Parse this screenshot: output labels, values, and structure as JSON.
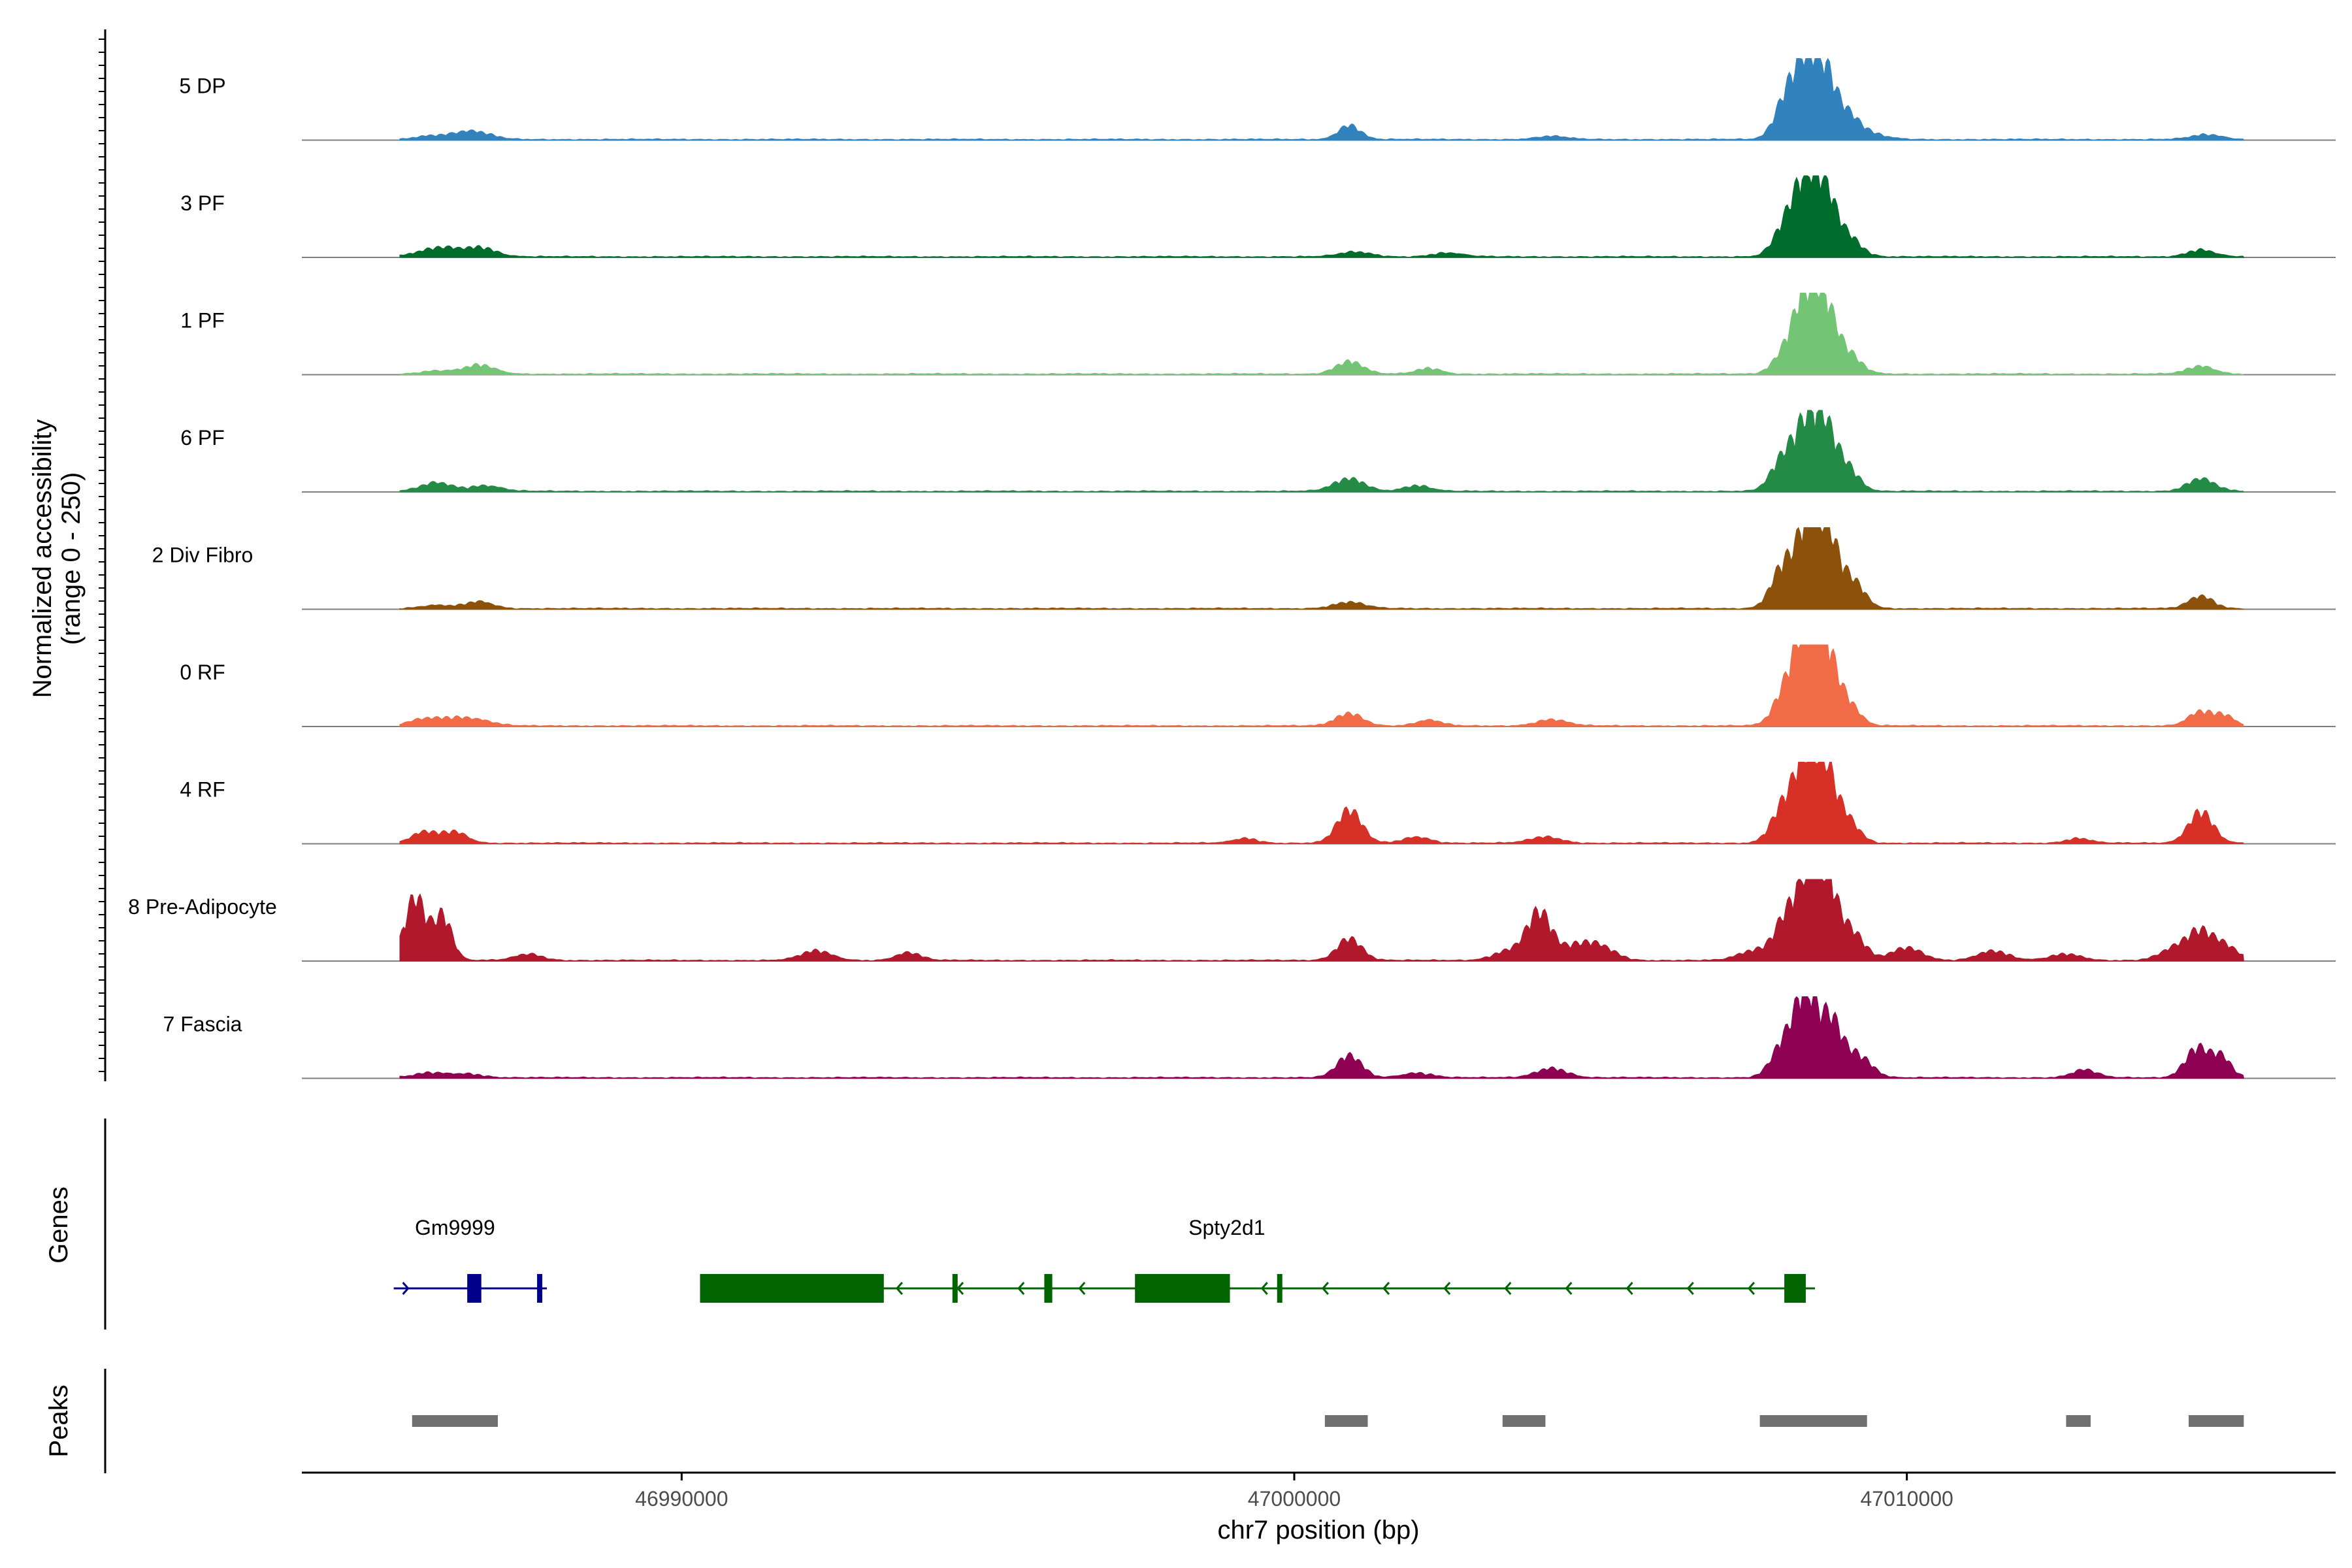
{
  "chart_data": {
    "type": "area",
    "title": "",
    "ylabel_line1": "Normalized accessibility",
    "ylabel_line2": "(range 0 - 250)",
    "ylim": [
      0,
      250
    ],
    "xlabel": "chr7 position (bp)",
    "xlim": [
      46983800,
      47017000
    ],
    "x_ticks": [
      46990000,
      47000000,
      47010000
    ],
    "x_tick_labels": [
      "46990000",
      "47000000",
      "47010000"
    ],
    "series": [
      {
        "name": "5 DP",
        "color": "#3182bd",
        "peaks": [
          [
            46985900,
            12,
            250
          ],
          [
            46986400,
            14,
            220
          ],
          [
            46986700,
            18,
            250
          ],
          [
            47000900,
            45,
            180
          ],
          [
            47004200,
            10,
            250
          ],
          [
            47008050,
            140,
            190
          ],
          [
            47008350,
            210,
            160
          ],
          [
            47008650,
            200,
            170
          ],
          [
            47009000,
            70,
            200
          ],
          [
            47009300,
            20,
            300
          ],
          [
            47014900,
            15,
            250
          ]
        ]
      },
      {
        "name": "3 PF",
        "color": "#006d2c",
        "peaks": [
          [
            46985900,
            20,
            260
          ],
          [
            46986200,
            15,
            200
          ],
          [
            46986700,
            30,
            260
          ],
          [
            47001000,
            15,
            260
          ],
          [
            47002500,
            12,
            250
          ],
          [
            47008050,
            110,
            200
          ],
          [
            47008350,
            200,
            170
          ],
          [
            47008650,
            190,
            170
          ],
          [
            47009000,
            70,
            220
          ],
          [
            47014800,
            22,
            220
          ]
        ]
      },
      {
        "name": "1 PF",
        "color": "#74c476",
        "peaks": [
          [
            46986000,
            10,
            250
          ],
          [
            46986700,
            28,
            250
          ],
          [
            47000900,
            40,
            220
          ],
          [
            47002200,
            18,
            200
          ],
          [
            47008050,
            80,
            200
          ],
          [
            47008350,
            220,
            170
          ],
          [
            47008650,
            200,
            170
          ],
          [
            47009000,
            70,
            220
          ],
          [
            47014800,
            25,
            220
          ]
        ]
      },
      {
        "name": "6 PF",
        "color": "#238b45",
        "peaks": [
          [
            46986000,
            28,
            250
          ],
          [
            46986800,
            18,
            250
          ],
          [
            47000900,
            40,
            250
          ],
          [
            47002000,
            18,
            220
          ],
          [
            47008000,
            110,
            200
          ],
          [
            47008350,
            180,
            170
          ],
          [
            47008650,
            190,
            170
          ],
          [
            47009000,
            80,
            200
          ],
          [
            47014800,
            40,
            220
          ]
        ]
      },
      {
        "name": "2 Div Fibro",
        "color": "#8c510a",
        "peaks": [
          [
            46986000,
            10,
            250
          ],
          [
            46986700,
            22,
            220
          ],
          [
            47000900,
            20,
            250
          ],
          [
            47008000,
            140,
            200
          ],
          [
            47008400,
            260,
            170
          ],
          [
            47008700,
            220,
            170
          ],
          [
            47009100,
            90,
            200
          ],
          [
            47014800,
            40,
            200
          ]
        ]
      },
      {
        "name": "0 RF",
        "color": "#f16b46",
        "peaks": [
          [
            46985800,
            22,
            250
          ],
          [
            46986300,
            20,
            250
          ],
          [
            46986700,
            15,
            250
          ],
          [
            47000900,
            40,
            220
          ],
          [
            47002200,
            18,
            200
          ],
          [
            47004200,
            20,
            250
          ],
          [
            47008050,
            120,
            200
          ],
          [
            47008350,
            260,
            170
          ],
          [
            47008650,
            240,
            170
          ],
          [
            47009000,
            80,
            200
          ],
          [
            47014800,
            45,
            200
          ],
          [
            47015200,
            30,
            150
          ]
        ]
      },
      {
        "name": "4 RF",
        "color": "#d73027",
        "peaks": [
          [
            46985800,
            35,
            200
          ],
          [
            46986300,
            35,
            200
          ],
          [
            46999200,
            15,
            200
          ],
          [
            47000900,
            105,
            200
          ],
          [
            47002000,
            20,
            220
          ],
          [
            47004100,
            20,
            250
          ],
          [
            47008000,
            120,
            200
          ],
          [
            47008350,
            240,
            170
          ],
          [
            47008650,
            220,
            170
          ],
          [
            47009000,
            80,
            200
          ],
          [
            47012800,
            15,
            200
          ],
          [
            47014800,
            100,
            200
          ]
        ]
      },
      {
        "name": "8 Pre-Adipocyte",
        "color": "#b2182b",
        "peaks": [
          [
            46985650,
            200,
            170
          ],
          [
            46986100,
            140,
            150
          ],
          [
            46987500,
            20,
            220
          ],
          [
            46992200,
            30,
            250
          ],
          [
            46993700,
            25,
            200
          ],
          [
            47000900,
            70,
            200
          ],
          [
            47003500,
            30,
            250
          ],
          [
            47004000,
            150,
            200
          ],
          [
            47004600,
            40,
            250
          ],
          [
            47005000,
            40,
            250
          ],
          [
            47007500,
            30,
            250
          ],
          [
            47008050,
            140,
            200
          ],
          [
            47008400,
            240,
            170
          ],
          [
            47008700,
            230,
            170
          ],
          [
            47009100,
            90,
            200
          ],
          [
            47010000,
            40,
            250
          ],
          [
            47011400,
            30,
            250
          ],
          [
            47012600,
            20,
            250
          ],
          [
            47014400,
            40,
            250
          ],
          [
            47014800,
            80,
            200
          ],
          [
            47015200,
            45,
            200
          ]
        ]
      },
      {
        "name": "7 Fascia",
        "color": "#8e0152",
        "peaks": [
          [
            46985900,
            15,
            250
          ],
          [
            46986500,
            12,
            250
          ],
          [
            47000900,
            70,
            200
          ],
          [
            47002000,
            15,
            250
          ],
          [
            47004200,
            30,
            250
          ],
          [
            47008000,
            110,
            200
          ],
          [
            47008350,
            250,
            170
          ],
          [
            47008750,
            180,
            180
          ],
          [
            47009200,
            70,
            220
          ],
          [
            47012900,
            25,
            200
          ],
          [
            47014750,
            95,
            200
          ],
          [
            47015150,
            60,
            150
          ]
        ]
      }
    ],
    "genes": {
      "title": "Genes",
      "items": [
        {
          "name": "Gm9999",
          "strand": "+",
          "color": "#00008b",
          "start": 46985300,
          "end": 46987800,
          "exons": [
            [
              46986500,
              46986730
            ],
            [
              46987640,
              46987720
            ]
          ],
          "label_x": 46986300
        },
        {
          "name": "Spty2d1",
          "strand": "-",
          "color": "#006400",
          "start": 46990300,
          "end": 47008500,
          "exons": [
            [
              46990300,
              46993300
            ],
            [
              46994420,
              46994500
            ],
            [
              46995920,
              46996050
            ],
            [
              46997400,
              46998950
            ],
            [
              46999720,
              46999800
            ],
            [
              47008000,
              47008350
            ]
          ],
          "label_x": 46998900
        }
      ]
    },
    "peaks_track": {
      "title": "Peaks",
      "regions": [
        [
          46985600,
          46987000
        ],
        [
          47000500,
          47001200
        ],
        [
          47003400,
          47004100
        ],
        [
          47007600,
          47009350
        ],
        [
          47012600,
          47013000
        ],
        [
          47014600,
          47015500
        ]
      ]
    }
  }
}
